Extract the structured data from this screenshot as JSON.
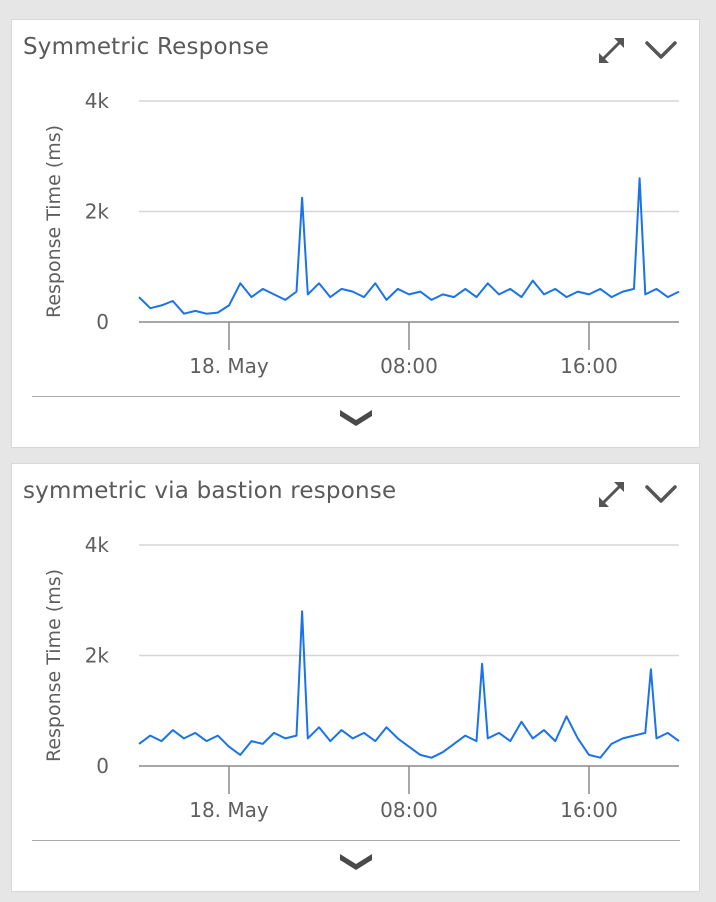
{
  "colors": {
    "series": "#1a73e8",
    "grid": "#d6d6d6",
    "axis": "#8a8a8a",
    "text": "#5f5f5f"
  },
  "icons": {
    "expand": "expand-arrows-icon",
    "collapse": "chevron-down-icon",
    "footer": "chevron-down-icon"
  },
  "panels": [
    {
      "title": "Symmetric Response"
    },
    {
      "title": "symmetric via bastion response"
    }
  ],
  "chart_data": [
    {
      "type": "line",
      "title": "Symmetric Response",
      "ylabel": "Response Time (ms)",
      "xlabel": "",
      "ylim": [
        0,
        4000
      ],
      "yticks": [
        0,
        2000,
        4000
      ],
      "ytick_labels": [
        "0",
        "2k",
        "4k"
      ],
      "xlim": [
        "2018-05-17T20:00",
        "2018-05-18T20:00"
      ],
      "xticks": [
        "2018-05-18T00:00",
        "2018-05-18T08:00",
        "2018-05-18T16:00"
      ],
      "xtick_labels": [
        "18. May",
        "08:00",
        "16:00"
      ],
      "grid": true,
      "legend": "none",
      "series": [
        {
          "color": "#1a73e8",
          "x": [
            "2018-05-17T20:00",
            "2018-05-17T20:30",
            "2018-05-17T21:00",
            "2018-05-17T21:30",
            "2018-05-17T22:00",
            "2018-05-17T22:30",
            "2018-05-17T23:00",
            "2018-05-17T23:30",
            "2018-05-18T00:00",
            "2018-05-18T00:30",
            "2018-05-18T01:00",
            "2018-05-18T01:30",
            "2018-05-18T02:00",
            "2018-05-18T02:30",
            "2018-05-18T03:00",
            "2018-05-18T03:15",
            "2018-05-18T03:30",
            "2018-05-18T04:00",
            "2018-05-18T04:30",
            "2018-05-18T05:00",
            "2018-05-18T05:30",
            "2018-05-18T06:00",
            "2018-05-18T06:30",
            "2018-05-18T07:00",
            "2018-05-18T07:30",
            "2018-05-18T08:00",
            "2018-05-18T08:30",
            "2018-05-18T09:00",
            "2018-05-18T09:30",
            "2018-05-18T10:00",
            "2018-05-18T10:30",
            "2018-05-18T11:00",
            "2018-05-18T11:30",
            "2018-05-18T12:00",
            "2018-05-18T12:30",
            "2018-05-18T13:00",
            "2018-05-18T13:30",
            "2018-05-18T14:00",
            "2018-05-18T14:30",
            "2018-05-18T15:00",
            "2018-05-18T15:30",
            "2018-05-18T16:00",
            "2018-05-18T16:30",
            "2018-05-18T17:00",
            "2018-05-18T17:30",
            "2018-05-18T18:00",
            "2018-05-18T18:15",
            "2018-05-18T18:30",
            "2018-05-18T19:00",
            "2018-05-18T19:30",
            "2018-05-18T20:00"
          ],
          "y": [
            450,
            250,
            300,
            380,
            150,
            200,
            150,
            170,
            300,
            700,
            450,
            600,
            500,
            400,
            550,
            2250,
            500,
            700,
            450,
            600,
            550,
            450,
            700,
            400,
            600,
            500,
            550,
            400,
            500,
            450,
            600,
            450,
            700,
            500,
            600,
            450,
            750,
            500,
            600,
            450,
            550,
            500,
            600,
            450,
            550,
            600,
            2600,
            500,
            600,
            450,
            550
          ]
        }
      ]
    },
    {
      "type": "line",
      "title": "symmetric via bastion response",
      "ylabel": "Response Time (ms)",
      "xlabel": "",
      "ylim": [
        0,
        4000
      ],
      "yticks": [
        0,
        2000,
        4000
      ],
      "ytick_labels": [
        "0",
        "2k",
        "4k"
      ],
      "xlim": [
        "2018-05-17T20:00",
        "2018-05-18T20:00"
      ],
      "xticks": [
        "2018-05-18T00:00",
        "2018-05-18T08:00",
        "2018-05-18T16:00"
      ],
      "xtick_labels": [
        "18. May",
        "08:00",
        "16:00"
      ],
      "grid": true,
      "legend": "none",
      "series": [
        {
          "color": "#1a73e8",
          "x": [
            "2018-05-17T20:00",
            "2018-05-17T20:30",
            "2018-05-17T21:00",
            "2018-05-17T21:30",
            "2018-05-17T22:00",
            "2018-05-17T22:30",
            "2018-05-17T23:00",
            "2018-05-17T23:30",
            "2018-05-18T00:00",
            "2018-05-18T00:30",
            "2018-05-18T01:00",
            "2018-05-18T01:30",
            "2018-05-18T02:00",
            "2018-05-18T02:30",
            "2018-05-18T03:00",
            "2018-05-18T03:15",
            "2018-05-18T03:30",
            "2018-05-18T04:00",
            "2018-05-18T04:30",
            "2018-05-18T05:00",
            "2018-05-18T05:30",
            "2018-05-18T06:00",
            "2018-05-18T06:30",
            "2018-05-18T07:00",
            "2018-05-18T07:30",
            "2018-05-18T08:00",
            "2018-05-18T08:30",
            "2018-05-18T09:00",
            "2018-05-18T09:30",
            "2018-05-18T10:00",
            "2018-05-18T10:30",
            "2018-05-18T11:00",
            "2018-05-18T11:15",
            "2018-05-18T11:30",
            "2018-05-18T12:00",
            "2018-05-18T12:30",
            "2018-05-18T13:00",
            "2018-05-18T13:30",
            "2018-05-18T14:00",
            "2018-05-18T14:30",
            "2018-05-18T15:00",
            "2018-05-18T15:30",
            "2018-05-18T16:00",
            "2018-05-18T16:30",
            "2018-05-18T17:00",
            "2018-05-18T17:30",
            "2018-05-18T18:00",
            "2018-05-18T18:30",
            "2018-05-18T18:45",
            "2018-05-18T19:00",
            "2018-05-18T19:30",
            "2018-05-18T20:00"
          ],
          "y": [
            400,
            550,
            450,
            650,
            500,
            600,
            450,
            550,
            350,
            200,
            450,
            400,
            600,
            500,
            550,
            2800,
            500,
            700,
            450,
            650,
            500,
            600,
            450,
            700,
            500,
            350,
            200,
            150,
            250,
            400,
            550,
            450,
            1850,
            500,
            600,
            450,
            800,
            500,
            650,
            450,
            900,
            500,
            200,
            150,
            400,
            500,
            550,
            600,
            1750,
            500,
            600,
            450
          ]
        }
      ]
    }
  ]
}
